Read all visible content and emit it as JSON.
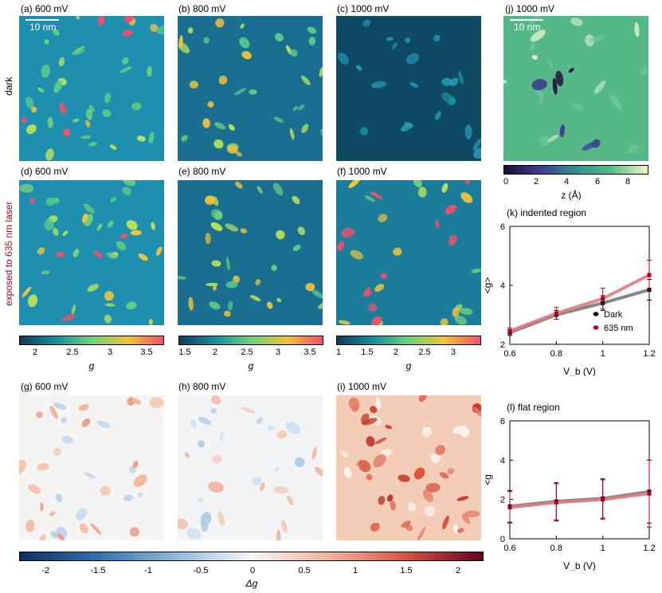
{
  "row_labels": {
    "dark": "dark",
    "laser": "exposed to 635 nm laser"
  },
  "panels": {
    "a": "(a) 600 mV",
    "b": "(b) 800 mV",
    "c": "(c) 1000 mV",
    "d": "(d) 600 mV",
    "e": "(e) 800 mV",
    "f": "(f) 1000 mV",
    "g": "(g) 600 mV",
    "h": "(h) 800 mV",
    "i": "(i) 1000 mV",
    "j": "(j) 1000 mV"
  },
  "scalebars": {
    "a": "10 nm",
    "j": "10 nm"
  },
  "colorbars": {
    "g600": {
      "ticks": [
        "2",
        "2.5",
        "3",
        "3.5"
      ],
      "unit": "g"
    },
    "g800": {
      "ticks": [
        "1.5",
        "2",
        "2.5",
        "3",
        "3.5"
      ],
      "unit": "g"
    },
    "g1000": {
      "ticks": [
        "1",
        "1.5",
        "2",
        "2.5",
        "3"
      ],
      "unit": "g"
    },
    "dg": {
      "ticks": [
        "-2",
        "-1.5",
        "-1",
        "-0.5",
        "0",
        "0.5",
        "1",
        "1.5",
        "2"
      ],
      "unit": "Δg"
    },
    "z": {
      "ticks": [
        "0",
        "2",
        "4",
        "6",
        "8"
      ],
      "unit": "z (Å)"
    }
  },
  "colors": {
    "map_low": "#0e3b5a",
    "map_mid": "#1a8ea0",
    "map_high": "#6ed17b",
    "map_peak": "#f2c33a",
    "map_hot": "#f0506e",
    "dark_series": "#000000",
    "laser_series": "#b00020",
    "dark_line": "#7a7a7a",
    "laser_line": "#e07a7f",
    "topo_bg": "#55b888"
  },
  "chart_data": [
    {
      "type": "line",
      "title": "(k) indented region",
      "xlabel": "V_b (V)",
      "ylabel": "<g>",
      "x": [
        0.6,
        0.8,
        1.0,
        1.2
      ],
      "xticks": [
        "0.6",
        "0.8",
        "1",
        "1.2"
      ],
      "yticks": [
        "2",
        "4",
        "6"
      ],
      "xlim": [
        0.6,
        1.2
      ],
      "ylim": [
        2,
        6
      ],
      "legend": "center-right",
      "series": [
        {
          "name": "Dark",
          "values": [
            2.4,
            3.0,
            3.4,
            3.85
          ],
          "err": [
            0.1,
            0.15,
            0.25,
            0.35
          ]
        },
        {
          "name": "635 nm",
          "values": [
            2.45,
            3.05,
            3.55,
            4.35
          ],
          "err": [
            0.1,
            0.2,
            0.35,
            0.5
          ]
        }
      ]
    },
    {
      "type": "line",
      "title": "(l) flat region",
      "xlabel": "V_b (V)",
      "ylabel": "<g",
      "x": [
        0.6,
        0.8,
        1.0,
        1.2
      ],
      "xticks": [
        "0.6",
        "0.8",
        "1",
        "1.2"
      ],
      "yticks": [
        "0",
        "2",
        "4",
        "6"
      ],
      "xlim": [
        0.6,
        1.2
      ],
      "ylim": [
        0,
        6
      ],
      "series": [
        {
          "name": "Dark",
          "values": [
            1.65,
            1.9,
            2.05,
            2.4
          ],
          "err": [
            0.8,
            0.95,
            1.0,
            1.6
          ]
        },
        {
          "name": "635 nm",
          "values": [
            1.6,
            1.85,
            2.0,
            2.3
          ],
          "err": [
            0.8,
            0.95,
            1.0,
            1.7
          ]
        }
      ]
    }
  ]
}
